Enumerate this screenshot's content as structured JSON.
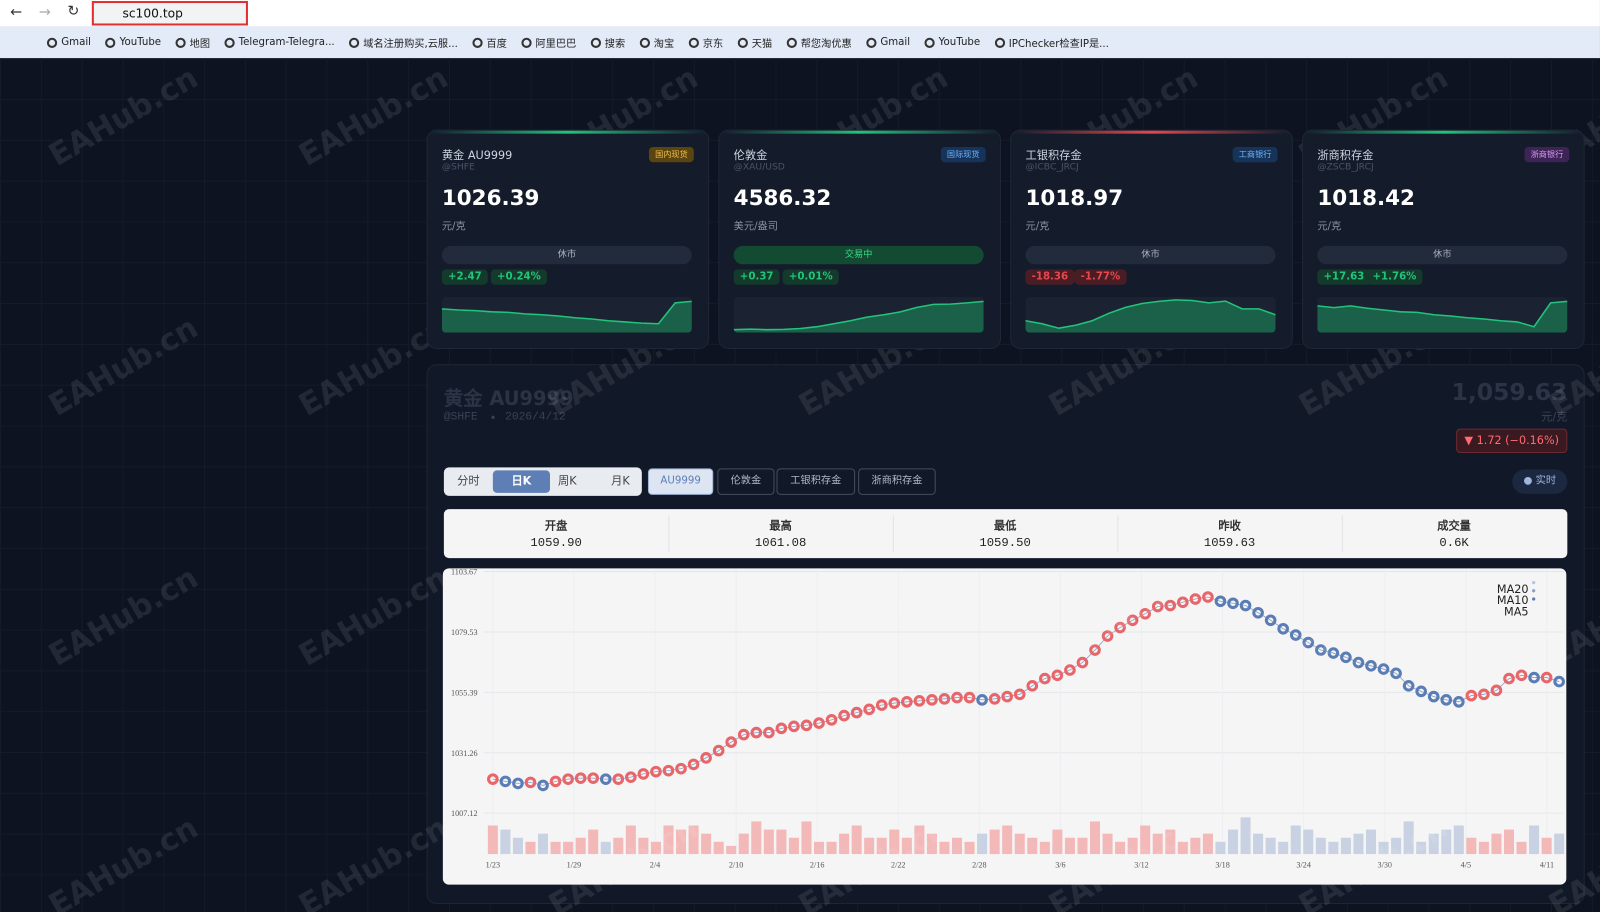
{
  "browser": {
    "url": "sc100.top",
    "bookmarks": [
      "Gmail",
      "YouTube",
      "地图",
      "Telegram-Telegra...",
      "域名注册购买,云服...",
      "百度",
      "阿里巴巴",
      "搜索",
      "淘宝",
      "京东",
      "天猫",
      "帮您淘优惠",
      "Gmail",
      "YouTube",
      "IPChecker检查IP是..."
    ]
  },
  "watermark": "EAHub.cn",
  "cards": [
    {
      "name": "黄金 AU9999",
      "code": "@SHFE",
      "badge": "国内现货",
      "price": "1026.39",
      "unit": "元/克",
      "status": "休市",
      "change": "+2.47",
      "change_pct": "+0.24%",
      "trend": [
        8,
        7.6,
        7.4,
        7,
        6.8,
        6.3,
        6,
        5.6,
        5,
        4.6,
        4,
        3.6,
        3.2,
        3,
        10,
        10.5
      ]
    },
    {
      "name": "伦敦金",
      "code": "@XAU/USD",
      "badge": "国际现货",
      "price": "4586.32",
      "unit": "美元/盎司",
      "status": "交易中",
      "change": "+0.37",
      "change_pct": "+0.01%",
      "trend": [
        1,
        1.2,
        1,
        1.1,
        1.4,
        2,
        3,
        4,
        5.2,
        6,
        7,
        8.5,
        9.5,
        9.6,
        10,
        10.5
      ]
    },
    {
      "name": "工银积存金",
      "code": "@ICBC_JRCJ",
      "badge": "工商银行",
      "price": "1018.97",
      "unit": "元/克",
      "status": "休市",
      "change": "-18.36",
      "change_pct": "-1.77%",
      "trend": [
        4,
        3,
        1.5,
        2.5,
        4,
        6.5,
        8.5,
        9.8,
        10.5,
        11,
        10.8,
        10,
        10.6,
        8,
        8,
        6
      ]
    },
    {
      "name": "浙商积存金",
      "code": "@ZSCB_JRCJ",
      "badge": "浙商银行",
      "price": "1018.42",
      "unit": "元/克",
      "status": "休市",
      "change": "+17.63",
      "change_pct": "+1.76%",
      "trend": [
        9,
        8.4,
        9,
        8.2,
        7.6,
        7,
        6.8,
        6,
        5.6,
        5,
        4.6,
        4,
        3.6,
        2,
        10,
        10.5
      ]
    }
  ],
  "panel": {
    "title": "黄金 AU9999",
    "code": "@SHFE",
    "date": "2026/4/12",
    "price": "1,059.63",
    "unit": "元/克",
    "change": "▼ 1.72 (−0.16%)",
    "periods": [
      "分时",
      "日K",
      "周K",
      "月K"
    ],
    "symbols": [
      "AU9999",
      "伦敦金",
      "工银积存金",
      "浙商积存金"
    ],
    "live": "实时",
    "stats": [
      {
        "label": "开盘",
        "value": "1059.90"
      },
      {
        "label": "最高",
        "value": "1061.08"
      },
      {
        "label": "最低",
        "value": "1059.50"
      },
      {
        "label": "昨收",
        "value": "1059.63"
      },
      {
        "label": "成交量",
        "value": "0.6K"
      }
    ]
  },
  "chart_data": {
    "type": "line",
    "x_labels": [
      "1/23",
      "1/29",
      "2/4",
      "2/10",
      "2/16",
      "2/22",
      "2/28",
      "3/6",
      "3/12",
      "3/18",
      "3/24",
      "3/30",
      "4/5",
      "4/11"
    ],
    "ylim": [
      1005.43,
      1105.36
    ],
    "yticks": [
      1007.12,
      1031.26,
      1055.39,
      1079.53,
      1103.67
    ],
    "legend": [
      "MA20",
      "MA10",
      "MA5"
    ],
    "up_color": "#e8666a",
    "down_color": "#5b7db5",
    "grid": true,
    "values": [
      1020.7,
      1019.8,
      1019.0,
      1019.4,
      1018.2,
      1019.8,
      1020.7,
      1021.1,
      1021.1,
      1020.7,
      1020.7,
      1021.5,
      1022.8,
      1023.7,
      1024.1,
      1024.9,
      1026.6,
      1029.2,
      1032.1,
      1035.5,
      1038.5,
      1039.3,
      1039.3,
      1041.0,
      1041.8,
      1042.2,
      1043.1,
      1044.4,
      1046.1,
      1047.3,
      1048.6,
      1050.3,
      1051.1,
      1051.6,
      1052.0,
      1052.4,
      1052.8,
      1053.3,
      1053.3,
      1052.4,
      1052.8,
      1053.7,
      1054.6,
      1058.0,
      1060.9,
      1062.2,
      1064.3,
      1067.3,
      1072.3,
      1077.9,
      1081.3,
      1084.2,
      1086.8,
      1089.7,
      1090.1,
      1091.4,
      1092.7,
      1093.5,
      1091.8,
      1091.0,
      1090.1,
      1087.2,
      1084.2,
      1080.8,
      1078.3,
      1075.3,
      1072.3,
      1071.1,
      1069.4,
      1067.3,
      1066.0,
      1064.7,
      1063.0,
      1058.0,
      1055.8,
      1053.7,
      1052.4,
      1051.6,
      1054.1,
      1054.6,
      1056.2,
      1060.9,
      1062.2,
      1061.3,
      1061.3,
      1059.7
    ],
    "volume_lim": [
      0,
      10
    ],
    "volume": [
      7,
      6,
      4,
      3,
      5,
      3,
      3,
      4,
      6,
      3,
      4,
      7,
      4,
      3,
      7,
      6,
      7,
      5,
      3,
      2,
      5,
      8,
      6,
      6,
      4,
      8,
      3,
      3,
      5,
      7,
      4,
      4,
      6,
      4,
      7,
      5,
      3,
      4,
      3,
      5,
      6,
      7,
      5,
      4,
      3,
      6,
      4,
      4,
      8,
      5,
      3,
      4,
      7,
      5,
      6,
      3,
      4,
      5,
      3,
      6,
      9,
      5,
      4,
      3,
      7,
      6,
      4,
      3,
      4,
      5,
      6,
      3,
      4,
      8,
      3,
      5,
      6,
      7,
      4,
      3,
      5,
      6,
      3,
      7,
      4,
      5
    ]
  }
}
